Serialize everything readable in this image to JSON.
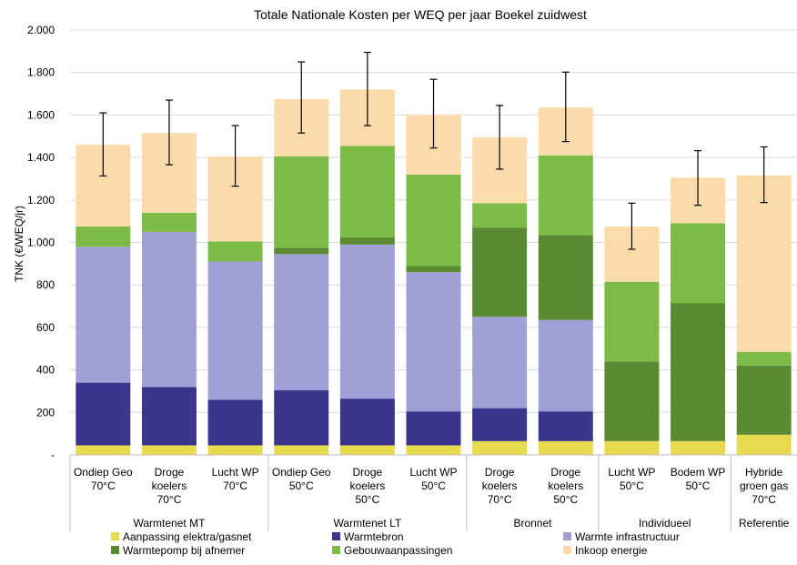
{
  "chart_data": {
    "type": "bar",
    "stacked": true,
    "title": "Totale Nationale Kosten per WEQ per jaar Boekel zuidwest",
    "ylabel": "TNK (€/WEQ/jr)",
    "xlabel": "",
    "ylim": [
      0,
      2000
    ],
    "yticks": [
      0,
      200,
      400,
      600,
      800,
      1000,
      1200,
      1400,
      1600,
      1800,
      2000
    ],
    "ytick_labels": [
      "-",
      "200",
      "400",
      "600",
      "800",
      "1.000",
      "1.200",
      "1.400",
      "1.600",
      "1.800",
      "2.000"
    ],
    "grid": true,
    "legend_position": "bottom",
    "categories": [
      [
        "Ondiep Geo",
        "70°C"
      ],
      [
        "Droge",
        "koelers",
        "70°C"
      ],
      [
        "Lucht WP",
        "70°C"
      ],
      [
        "Ondiep Geo",
        "50°C"
      ],
      [
        "Droge",
        "koelers",
        "50°C"
      ],
      [
        "Lucht WP",
        "50°C"
      ],
      [
        "Droge",
        "koelers",
        "70°C"
      ],
      [
        "Droge",
        "koelers",
        "50°C"
      ],
      [
        "Lucht WP",
        "50°C"
      ],
      [
        "Bodem WP",
        "50°C"
      ],
      [
        "Hybride",
        "groen gas",
        "70°C"
      ]
    ],
    "groups": [
      {
        "label": "Warmtenet MT",
        "span": 3
      },
      {
        "label": "Warmtenet LT",
        "span": 3
      },
      {
        "label": "Bronnet",
        "span": 2
      },
      {
        "label": "Individueel",
        "span": 2
      },
      {
        "label": "Referentie",
        "span": 1
      }
    ],
    "series": [
      {
        "name": "Aanpassing elektra/gasnet",
        "color": "#e8da4e",
        "values": [
          45,
          45,
          45,
          45,
          45,
          45,
          65,
          65,
          65,
          65,
          95
        ]
      },
      {
        "name": "Warmtebron",
        "color": "#39368c",
        "values": [
          295,
          275,
          215,
          260,
          220,
          160,
          155,
          140,
          0,
          0,
          0
        ]
      },
      {
        "name": "Warmte infrastructuur",
        "color": "#a09fd8",
        "values": [
          640,
          730,
          650,
          640,
          725,
          655,
          430,
          430,
          0,
          0,
          0
        ]
      },
      {
        "name": "Warmtepomp bij afnemer",
        "color": "#5a8a32",
        "values": [
          0,
          0,
          0,
          30,
          35,
          30,
          420,
          400,
          375,
          650,
          325
        ]
      },
      {
        "name": "Gebouwaanpassingen",
        "color": "#7cbb45",
        "values": [
          95,
          90,
          95,
          430,
          430,
          430,
          115,
          375,
          375,
          375,
          65
        ]
      },
      {
        "name": "Inkoop energie",
        "color": "#fcdbaa",
        "values": [
          385,
          375,
          400,
          270,
          265,
          280,
          310,
          225,
          260,
          215,
          830
        ]
      }
    ],
    "error_bars": {
      "center": [
        1463,
        1518,
        1408,
        1683,
        1723,
        1605,
        1497,
        1640,
        1078,
        1305,
        1318
      ],
      "low": [
        1313,
        1366,
        1265,
        1515,
        1550,
        1445,
        1345,
        1475,
        968,
        1175,
        1188
      ],
      "high": [
        1610,
        1670,
        1550,
        1850,
        1895,
        1768,
        1645,
        1802,
        1185,
        1432,
        1450
      ]
    }
  }
}
